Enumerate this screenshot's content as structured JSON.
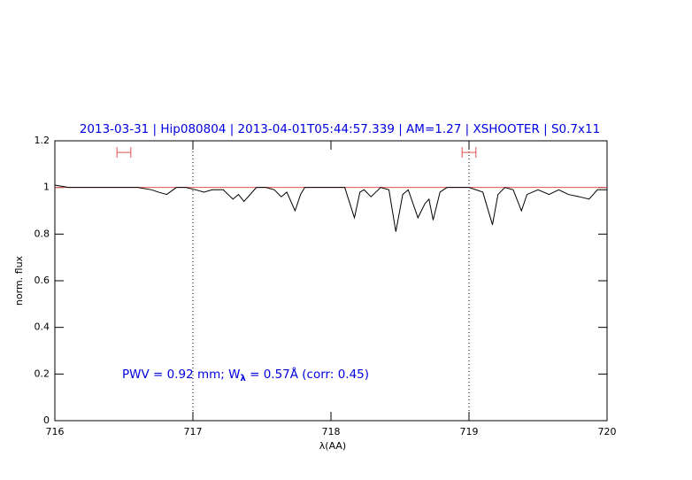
{
  "chart_data": {
    "type": "line",
    "title": "2013-03-31 | Hip080804 | 2013-04-01T05:44:57.339 | AM=1.27 | XSHOOTER | S0.7x11",
    "xlabel": "λ(AA)",
    "ylabel": "norm. flux",
    "annotation": {
      "prefix": "PWV = 0.92 mm; W",
      "subscript": "λ",
      "suffix": " = 0.57Å (corr: 0.45)"
    },
    "x": [
      716.0,
      716.1,
      716.2,
      716.3,
      716.4,
      716.5,
      716.6,
      716.7,
      716.75,
      716.81,
      716.88,
      716.95,
      717.02,
      717.08,
      717.14,
      717.22,
      717.29,
      717.33,
      717.37,
      717.46,
      717.53,
      717.59,
      717.64,
      717.68,
      717.74,
      717.78,
      717.81,
      717.9,
      718.0,
      718.1,
      718.17,
      718.21,
      718.24,
      718.29,
      718.36,
      718.42,
      718.47,
      718.52,
      718.56,
      718.63,
      718.68,
      718.71,
      718.74,
      718.79,
      718.84,
      718.92,
      719.0,
      719.1,
      719.17,
      719.21,
      719.26,
      719.32,
      719.38,
      719.42,
      719.5,
      719.58,
      719.65,
      719.72,
      719.8,
      719.87,
      719.93,
      720.0
    ],
    "values": [
      1.01,
      1.0,
      1.0,
      1.0,
      1.0,
      1.0,
      1.0,
      0.99,
      0.98,
      0.97,
      1.0,
      1.0,
      0.99,
      0.98,
      0.99,
      0.99,
      0.95,
      0.97,
      0.94,
      1.0,
      1.0,
      0.99,
      0.96,
      0.98,
      0.9,
      0.97,
      1.0,
      1.0,
      1.0,
      1.0,
      0.87,
      0.98,
      0.99,
      0.96,
      1.0,
      0.99,
      0.81,
      0.97,
      0.99,
      0.87,
      0.93,
      0.95,
      0.86,
      0.98,
      1.0,
      1.0,
      1.0,
      0.98,
      0.84,
      0.97,
      1.0,
      0.99,
      0.9,
      0.97,
      0.99,
      0.97,
      0.99,
      0.97,
      0.96,
      0.95,
      0.99,
      0.99
    ],
    "color": "#000000",
    "continuum": 1,
    "continuum_color": "#e05050",
    "markers": [
      {
        "x": 716.5,
        "xerr": 0.05,
        "y": 1.15
      },
      {
        "x": 719.0,
        "xerr": 0.05,
        "y": 1.15
      }
    ],
    "vlines": [
      717,
      719
    ],
    "xlim": [
      716,
      720
    ],
    "ylim": [
      0,
      1.2
    ],
    "xticks": [
      716,
      717,
      718,
      719,
      720
    ],
    "yticks": [
      0,
      0.2,
      0.4,
      0.6,
      0.8,
      1,
      1.2
    ],
    "text_color": "#0000e0"
  }
}
